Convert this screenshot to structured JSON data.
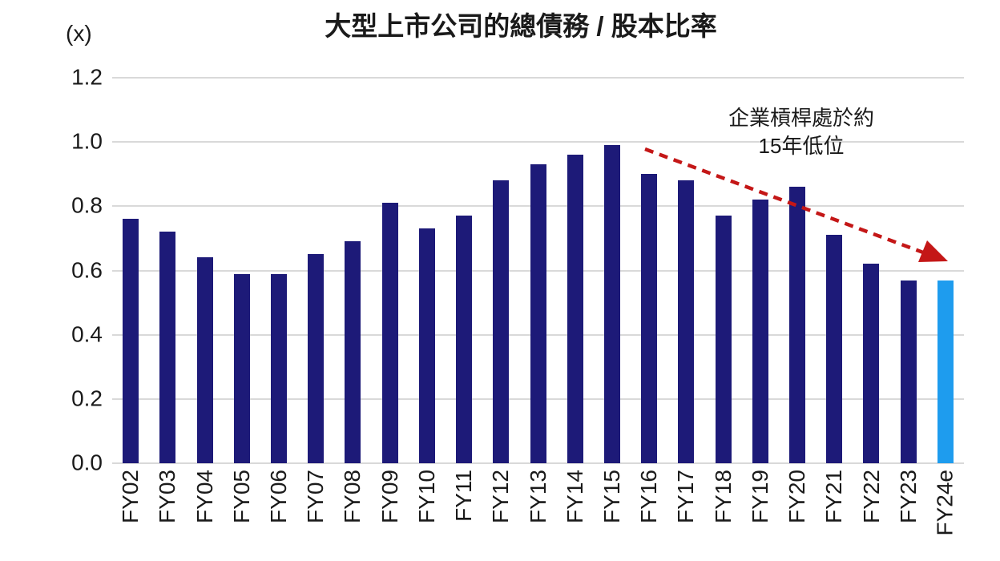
{
  "chart_data": {
    "type": "bar",
    "title": "大型上市公司的總債務 / 股本比率",
    "unit_label": "(x)",
    "categories": [
      "FY02",
      "FY03",
      "FY04",
      "FY05",
      "FY06",
      "FY07",
      "FY08",
      "FY09",
      "FY10",
      "FY11",
      "FY12",
      "FY13",
      "FY14",
      "FY15",
      "FY16",
      "FY17",
      "FY18",
      "FY19",
      "FY20",
      "FY21",
      "FY22",
      "FY23",
      "FY24e"
    ],
    "values": [
      0.76,
      0.72,
      0.64,
      0.59,
      0.59,
      0.65,
      0.69,
      0.81,
      0.73,
      0.77,
      0.88,
      0.93,
      0.96,
      0.99,
      0.9,
      0.88,
      0.77,
      0.82,
      0.86,
      0.71,
      0.62,
      0.57,
      0.57
    ],
    "ylim": [
      0,
      1.2
    ],
    "y_ticks": [
      "0.0",
      "0.2",
      "0.4",
      "0.6",
      "0.8",
      "1.0",
      "1.2"
    ],
    "grid": true,
    "legend": "none",
    "bar_color": "#1d1a78",
    "highlight_bar_color": "#1e9cee",
    "highlight_category": "FY24e",
    "gridline_color": "#d9d9d9",
    "annotation": {
      "line1": "企業槓桿處於約",
      "line2": "15年低位",
      "arrow_color": "#c41717"
    }
  }
}
